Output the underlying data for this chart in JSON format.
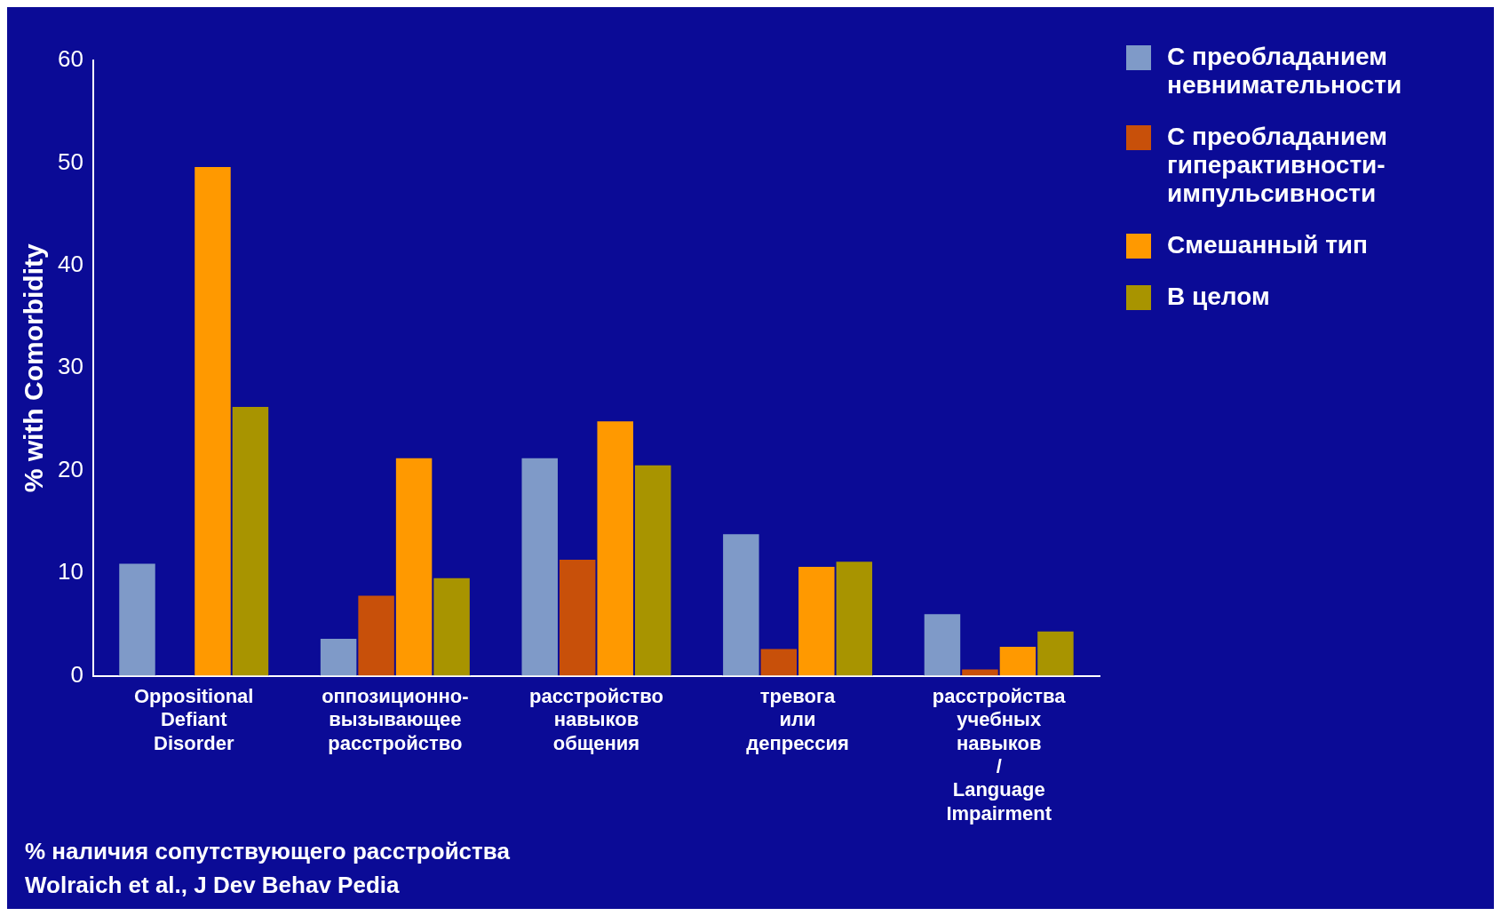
{
  "chart_data": {
    "type": "bar",
    "ylabel": "% with Comorbidity",
    "categories": [
      "Oppositional Defiant Disorder",
      "оппозиционно-вызывающее расстройство",
      "расстройство навыков общения",
      "тревога или депрессия",
      "расстройства учебных навыков / Language Impairment"
    ],
    "series": [
      {
        "name": "С преобладанием невнимательности",
        "color": "#7f9ac8",
        "values": [
          11,
          3.7,
          21.3,
          13.9,
          6.1
        ]
      },
      {
        "name": "С преобладанием гиперактивности-импульсивности",
        "color": "#c8500a",
        "values": [
          null,
          7.9,
          11.4,
          2.7,
          0.7
        ]
      },
      {
        "name": "Смешанный тип",
        "color": "#ff9900",
        "values": [
          49.7,
          21.3,
          24.9,
          10.7,
          2.9
        ]
      },
      {
        "name": "В целом",
        "color": "#a89400",
        "values": [
          26.3,
          9.6,
          20.6,
          11.2,
          4.4
        ]
      }
    ],
    "ylim": [
      0,
      60
    ],
    "yticks": [
      0,
      10,
      20,
      30,
      40,
      50,
      60
    ],
    "grid": false,
    "legend": "right",
    "annotations": [
      "% наличия сопутствующего расстройства",
      "Wolraich et al., J Dev Behav Pedia"
    ]
  }
}
